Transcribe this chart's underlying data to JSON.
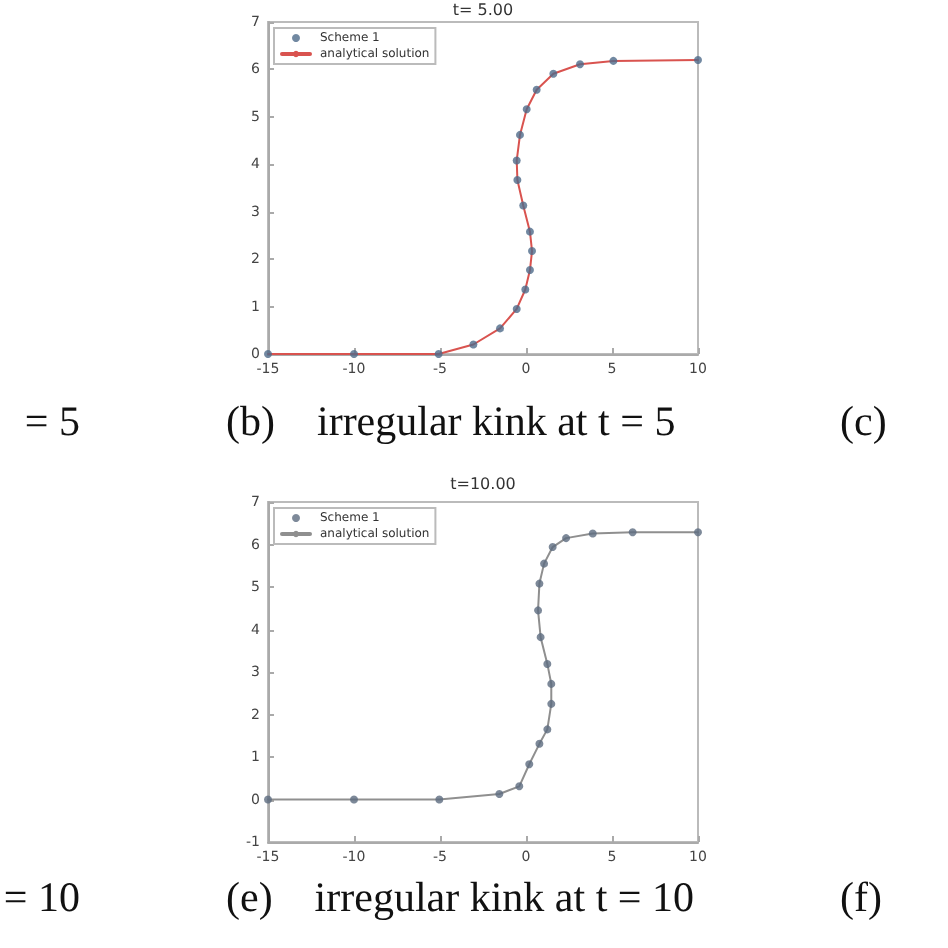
{
  "chart_data": [
    {
      "type": "line",
      "title": "t= 5.00",
      "xlim": [
        -15,
        10
      ],
      "xticks": [
        -15,
        -10,
        -5,
        0,
        5,
        10
      ],
      "ylim": [
        0,
        7
      ],
      "yticks": [
        0,
        1,
        2,
        3,
        4,
        5,
        6,
        7
      ],
      "line_style": "solid",
      "grid": false,
      "legend": "top left",
      "annotations": [
        "(b)    irregular kink at t = 5",
        "= 5",
        "(c)"
      ],
      "series": [
        {
          "name": "Scheme 1",
          "type": "scatter",
          "marker": "circle",
          "color": "#4d6a8a",
          "x": [
            -15,
            -10,
            -5.08,
            -3.06,
            -1.51,
            -0.54,
            -0.04,
            0.23,
            0.35,
            0.23,
            -0.16,
            -0.5,
            -0.54,
            -0.35,
            0.04,
            0.62,
            1.59,
            3.14,
            5.08,
            10
          ],
          "values": [
            0,
            0,
            0,
            0.2,
            0.54,
            0.95,
            1.36,
            1.77,
            2.17,
            2.58,
            3.13,
            3.67,
            4.08,
            4.62,
            5.16,
            5.57,
            5.91,
            6.11,
            6.18,
            6.2
          ]
        },
        {
          "name": "analytical solution",
          "type": "line",
          "marker": "none",
          "color": "#d9534f",
          "x": [
            -15,
            -10,
            -5.08,
            -3.06,
            -1.51,
            -0.54,
            -0.04,
            0.23,
            0.35,
            0.23,
            -0.16,
            -0.5,
            -0.54,
            -0.35,
            0.04,
            0.62,
            1.59,
            3.14,
            5.08,
            10
          ],
          "values": [
            0,
            0,
            0,
            0.2,
            0.54,
            0.95,
            1.36,
            1.77,
            2.17,
            2.58,
            3.13,
            3.67,
            4.08,
            4.62,
            5.16,
            5.57,
            5.91,
            6.11,
            6.18,
            6.2
          ]
        }
      ]
    },
    {
      "type": "line",
      "title": "t=10.00",
      "xlim": [
        -15,
        10
      ],
      "xticks": [
        -15,
        -10,
        -5,
        0,
        5,
        10
      ],
      "ylim": [
        -1,
        7
      ],
      "yticks": [
        -1,
        0,
        1,
        2,
        3,
        4,
        5,
        6,
        7
      ],
      "line_style": "solid",
      "grid": false,
      "legend": "top left",
      "annotations": [
        "(e)    irregular kink at t = 10",
        "= 10",
        "(f)"
      ],
      "series": [
        {
          "name": "Scheme 1",
          "type": "scatter",
          "marker": "circle",
          "color": "#5c6c80",
          "x": [
            -15,
            -10,
            -5.04,
            -1.55,
            -0.39,
            0.19,
            0.78,
            1.24,
            1.47,
            1.47,
            1.24,
            0.85,
            0.7,
            0.78,
            1.05,
            1.55,
            2.33,
            3.88,
            6.2,
            10
          ],
          "values": [
            0,
            0,
            0,
            0.13,
            0.31,
            0.83,
            1.31,
            1.65,
            2.25,
            2.72,
            3.19,
            3.82,
            4.45,
            5.08,
            5.55,
            5.94,
            6.15,
            6.26,
            6.29,
            6.29
          ]
        },
        {
          "name": "analytical solution",
          "type": "line",
          "marker": "none",
          "color": "#8f8f8f",
          "x": [
            -15,
            -10,
            -5.04,
            -1.55,
            -0.39,
            0.19,
            0.78,
            1.24,
            1.47,
            1.47,
            1.24,
            0.85,
            0.7,
            0.78,
            1.05,
            1.55,
            2.33,
            3.88,
            6.2,
            10
          ],
          "values": [
            0,
            0,
            0,
            0.13,
            0.31,
            0.83,
            1.31,
            1.65,
            2.25,
            2.72,
            3.19,
            3.82,
            4.45,
            5.08,
            5.55,
            5.94,
            6.15,
            6.26,
            6.29,
            6.29
          ]
        }
      ]
    }
  ]
}
